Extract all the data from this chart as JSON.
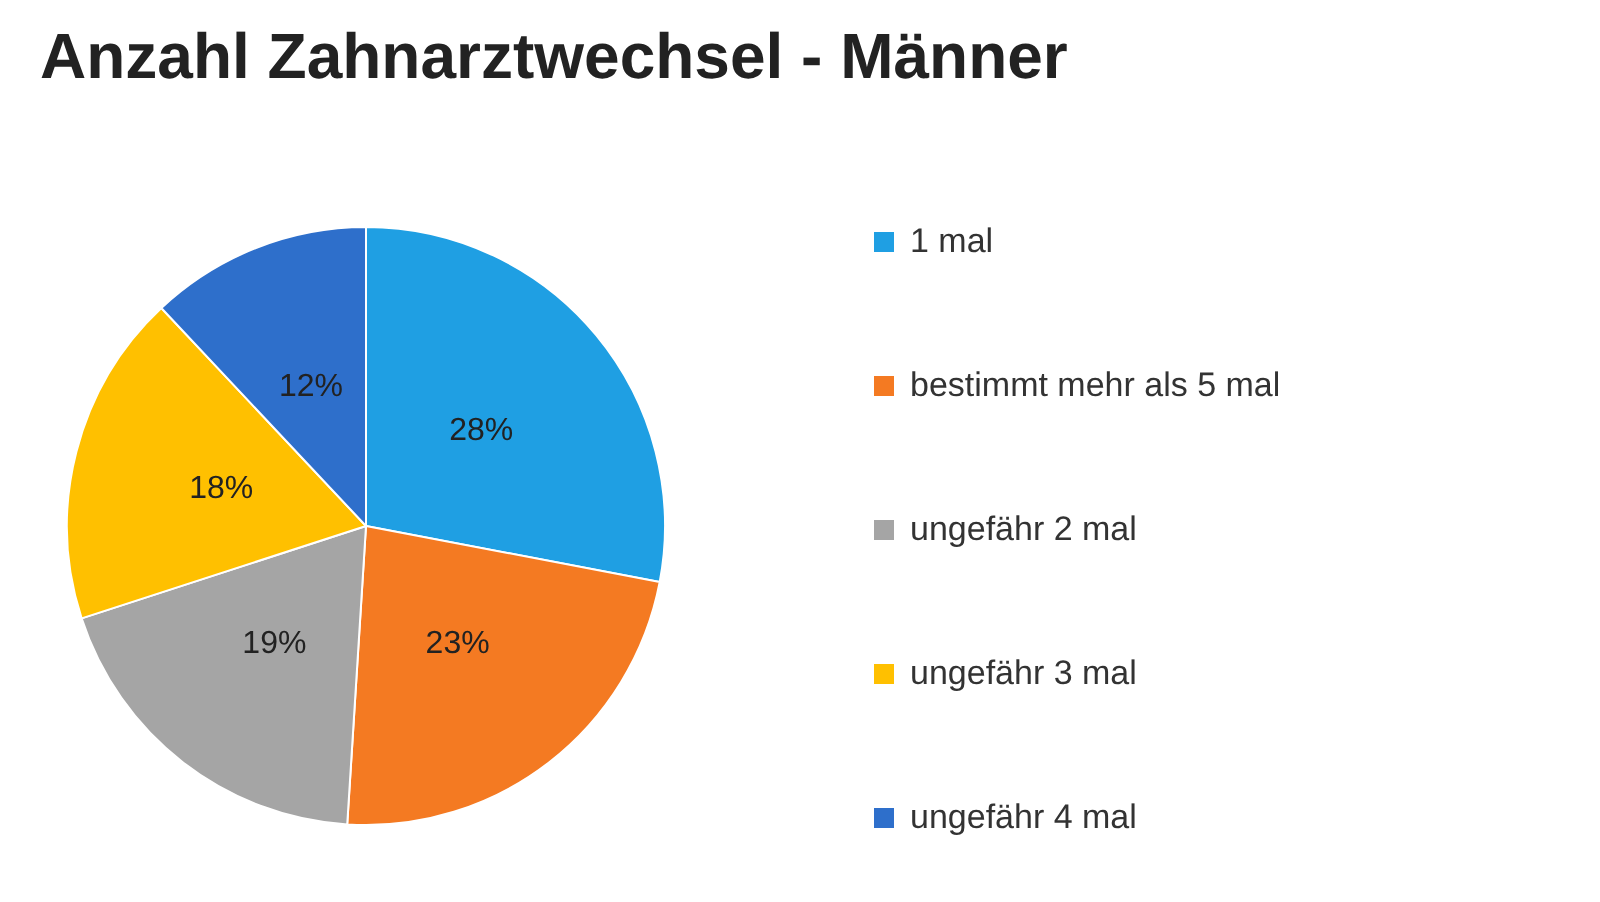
{
  "chart_data": {
    "type": "pie",
    "title": "Anzahl Zahnarztwechsel - Männer",
    "categories": [
      "1 mal",
      "bestimmt mehr als 5 mal",
      "ungefähr 2 mal",
      "ungefähr 3 mal",
      "ungefähr 4 mal"
    ],
    "values": [
      28,
      23,
      19,
      18,
      12
    ],
    "colors": [
      "#1f9fe3",
      "#f47a22",
      "#a5a5a5",
      "#ffc000",
      "#2e6fcb"
    ],
    "value_labels": [
      "28%",
      "23%",
      "19%",
      "18%",
      "12%"
    ],
    "legend": "right"
  }
}
